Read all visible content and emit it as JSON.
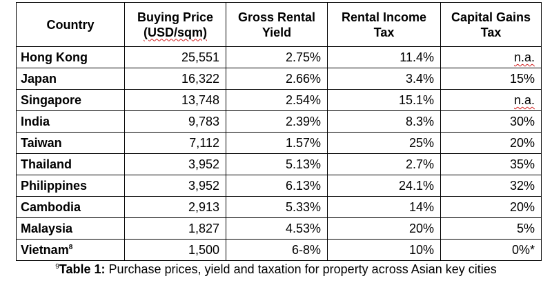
{
  "table": {
    "headers": [
      {
        "line1": "Country",
        "line2": ""
      },
      {
        "line1": "Buying Price",
        "line2": "(USD/sqm)"
      },
      {
        "line1": "Gross Rental",
        "line2": "Yield"
      },
      {
        "line1": "Rental Income",
        "line2": "Tax"
      },
      {
        "line1": "Capital Gains",
        "line2": "Tax"
      }
    ],
    "rows": [
      {
        "country": "Hong Kong",
        "sup": "",
        "price": "25,551",
        "yield": "2.75%",
        "rental_tax": "11.4%",
        "cg_tax": "n.a."
      },
      {
        "country": "Japan",
        "sup": "",
        "price": "16,322",
        "yield": "2.66%",
        "rental_tax": "3.4%",
        "cg_tax": "15%"
      },
      {
        "country": "Singapore",
        "sup": "",
        "price": "13,748",
        "yield": "2.54%",
        "rental_tax": "15.1%",
        "cg_tax": "n.a."
      },
      {
        "country": "India",
        "sup": "",
        "price": "9,783",
        "yield": "2.39%",
        "rental_tax": "8.3%",
        "cg_tax": "30%"
      },
      {
        "country": "Taiwan",
        "sup": "",
        "price": "7,112",
        "yield": "1.57%",
        "rental_tax": "25%",
        "cg_tax": "20%"
      },
      {
        "country": "Thailand",
        "sup": "",
        "price": "3,952",
        "yield": "5.13%",
        "rental_tax": "2.7%",
        "cg_tax": "35%"
      },
      {
        "country": "Philippines",
        "sup": "",
        "price": "3,952",
        "yield": "6.13%",
        "rental_tax": "24.1%",
        "cg_tax": "32%"
      },
      {
        "country": "Cambodia",
        "sup": "",
        "price": "2,913",
        "yield": "5.33%",
        "rental_tax": "14%",
        "cg_tax": "20%"
      },
      {
        "country": "Malaysia",
        "sup": "",
        "price": "1,827",
        "yield": "4.53%",
        "rental_tax": "20%",
        "cg_tax": "5%"
      },
      {
        "country": "Vietnam",
        "sup": "8",
        "price": "1,500",
        "yield": "6-8%",
        "rental_tax": "10%",
        "cg_tax": "0%*"
      }
    ]
  },
  "caption": {
    "sup": "9",
    "label": "Table 1:",
    "text": " Purchase prices, yield and taxation for property across Asian key cities"
  }
}
